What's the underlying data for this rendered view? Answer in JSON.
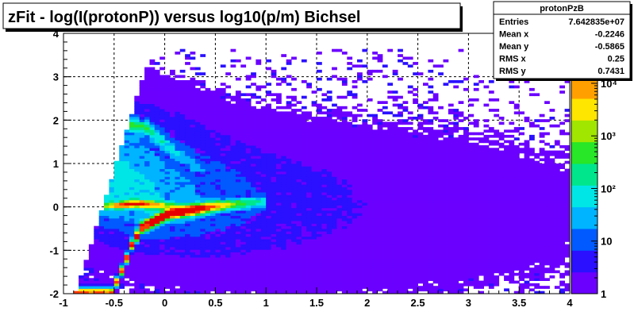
{
  "chart_data": {
    "type": "heatmap",
    "title": "zFit - log(I(protonP)) versus log10(p/m) Bichsel",
    "xlim": [
      -1,
      4
    ],
    "ylim": [
      -2,
      4
    ],
    "x_ticks": [
      "-1",
      "-0.5",
      "0",
      "0.5",
      "1",
      "1.5",
      "2",
      "2.5",
      "3",
      "3.5",
      "4"
    ],
    "y_ticks": [
      "-2",
      "-1",
      "0",
      "1",
      "2",
      "3",
      "4"
    ],
    "grid": true,
    "z_scale": "log",
    "z_ticks": [
      "1",
      "10",
      "10²",
      "10³",
      "10⁴"
    ],
    "z_partial_label": "5",
    "bands": [
      {
        "kind": "proton",
        "points": [
          [
            -0.55,
            -2.0
          ],
          [
            -0.45,
            -1.5
          ],
          [
            -0.35,
            -0.9
          ],
          [
            -0.25,
            -0.5
          ],
          [
            0.0,
            -0.2
          ],
          [
            0.5,
            0.0
          ],
          [
            1.0,
            0.1
          ]
        ]
      },
      {
        "kind": "electron/pion",
        "points": [
          [
            -0.55,
            0.0
          ],
          [
            -0.3,
            0.05
          ],
          [
            0.0,
            0.0
          ],
          [
            0.3,
            -0.05
          ]
        ]
      },
      {
        "kind": "kaon/deuteron",
        "points": [
          [
            -0.8,
            0.8
          ],
          [
            -0.55,
            1.6
          ],
          [
            -0.4,
            1.9
          ],
          [
            -0.2,
            1.8
          ],
          [
            0.1,
            1.2
          ],
          [
            0.5,
            0.6
          ]
        ]
      }
    ],
    "stats": {
      "name": "protonPzB",
      "rows": [
        {
          "label": "Entries",
          "value": "7.642835e+07"
        },
        {
          "label": "Mean x",
          "value": "-0.2246"
        },
        {
          "label": "Mean y",
          "value": "-0.5865"
        },
        {
          "label": "RMS x",
          "value": "0.25"
        },
        {
          "label": "RMS y",
          "value": "0.7431"
        }
      ]
    }
  },
  "palette": [
    "#6b00ff",
    "#2a10ff",
    "#005aff",
    "#00b4ff",
    "#00e6e6",
    "#00e68c",
    "#28e628",
    "#a0e600",
    "#ffe600",
    "#ffa000",
    "#ff3c00",
    "#e60000"
  ]
}
